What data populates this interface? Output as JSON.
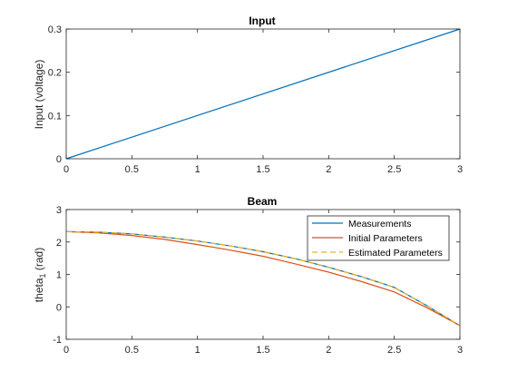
{
  "chart_data": [
    {
      "type": "line",
      "title": "Input",
      "xlabel": "",
      "ylabel": "Input (voltage)",
      "xlim": [
        0,
        3
      ],
      "ylim": [
        0,
        0.3
      ],
      "xticks": [
        "0",
        "0.5",
        "1",
        "1.5",
        "2",
        "2.5",
        "3"
      ],
      "yticks": [
        "0",
        "0.1",
        "0.2",
        "0.3"
      ],
      "grid": false,
      "series": [
        {
          "color": "#0072BD",
          "dash": "solid",
          "x": [
            0,
            3
          ],
          "y": [
            0,
            0.3
          ]
        }
      ]
    },
    {
      "type": "line",
      "title": "Beam",
      "xlabel": "",
      "ylabel": "theta",
      "ylabel_subscript": "1",
      "ylabel_suffix": " (rad)",
      "xlim": [
        0,
        3
      ],
      "ylim": [
        -1,
        3
      ],
      "xticks": [
        "0",
        "0.5",
        "1",
        "1.5",
        "2",
        "2.5",
        "3"
      ],
      "yticks": [
        "-1",
        "0",
        "1",
        "2",
        "3"
      ],
      "grid": false,
      "legend_position": "top-right",
      "series": [
        {
          "name": "Measurements",
          "color": "#0072BD",
          "dash": "solid",
          "x": [
            0,
            0.25,
            0.5,
            0.75,
            1,
            1.25,
            1.5,
            1.75,
            2,
            2.25,
            2.5,
            2.75,
            3
          ],
          "y": [
            2.32,
            2.3,
            2.25,
            2.15,
            2.03,
            1.88,
            1.7,
            1.48,
            1.22,
            0.93,
            0.6,
            0.03,
            -0.58
          ]
        },
        {
          "name": "Initial Parameters",
          "color": "#D95319",
          "dash": "solid",
          "x": [
            0,
            0.25,
            0.5,
            0.75,
            1,
            1.25,
            1.5,
            1.75,
            2,
            2.25,
            2.5,
            2.75,
            3
          ],
          "y": [
            2.32,
            2.28,
            2.2,
            2.08,
            1.92,
            1.75,
            1.56,
            1.32,
            1.07,
            0.78,
            0.46,
            -0.03,
            -0.58
          ]
        },
        {
          "name": "Estimated Parameters",
          "color": "#EDB120",
          "dash": "dashed",
          "x": [
            0,
            0.25,
            0.5,
            0.75,
            1,
            1.25,
            1.5,
            1.75,
            2,
            2.25,
            2.5,
            2.75,
            3
          ],
          "y": [
            2.32,
            2.3,
            2.25,
            2.15,
            2.03,
            1.88,
            1.7,
            1.48,
            1.22,
            0.93,
            0.6,
            0.03,
            -0.58
          ]
        }
      ]
    }
  ]
}
